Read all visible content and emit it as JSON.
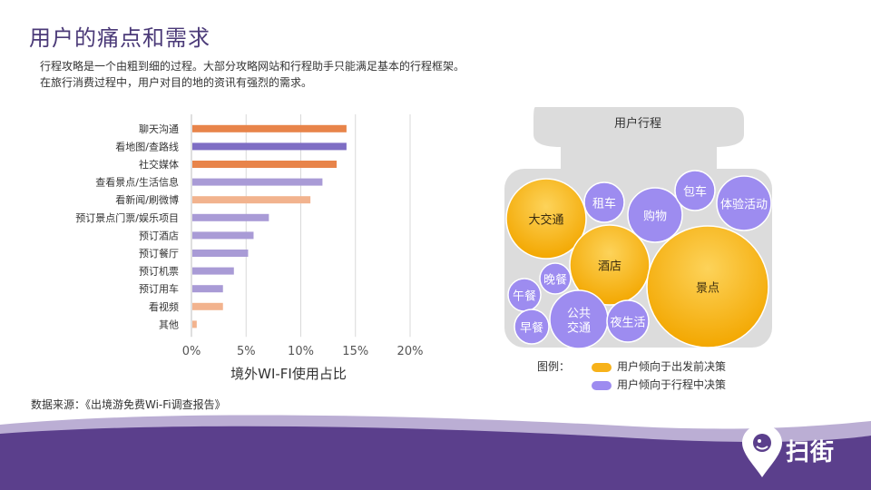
{
  "page": {
    "title": "用户的痛点和需求",
    "subtitle_lines": [
      "行程攻略是一个由粗到细的过程。大部分攻略网站和行程助手只能满足基本的行程框架。",
      "在旅行消费过程中，用户对目的地的资讯有强烈的需求。"
    ],
    "source": "数据来源：《出境游免费Wi-Fi调查报告》",
    "logo_text": "扫街"
  },
  "colors": {
    "title": "#4b3a78",
    "orange_dark": "#e8844a",
    "purple_dark": "#7e6ec4",
    "orange_light": "#f2b38e",
    "purple_light": "#a99bd6",
    "gold": "#f7b21a",
    "violet": "#9d8cf0",
    "footer_purple": "#5b3f8c"
  },
  "chart_data": {
    "type": "bar",
    "orientation": "horizontal",
    "categories": [
      "聊天沟通",
      "看地图/查路线",
      "社交媒体",
      "查看景点/生活信息",
      "看新闻/刷微博",
      "预订景点门票/娱乐项目",
      "预订酒店",
      "预订餐厅",
      "预订机票",
      "预订用车",
      "看视频",
      "其他"
    ],
    "values": [
      14.1,
      14.1,
      13.2,
      11.9,
      10.8,
      7.0,
      5.6,
      5.1,
      3.8,
      2.8,
      2.8,
      0.4
    ],
    "bar_colors": [
      "orange_dark",
      "purple_dark",
      "orange_dark",
      "purple_light",
      "orange_light",
      "purple_light",
      "purple_light",
      "purple_light",
      "purple_light",
      "purple_light",
      "orange_light",
      "orange_light"
    ],
    "x_ticks": [
      "0%",
      "5%",
      "10%",
      "15%",
      "20%"
    ],
    "xlim": [
      0,
      20
    ],
    "xlabel": "境外WI-FI使用占比",
    "grid": true
  },
  "bubble": {
    "header": "用户行程",
    "legend_title": "图例：",
    "legend": [
      {
        "label": "用户倾向于出发前决策",
        "color": "gold"
      },
      {
        "label": "用户倾向于行程中决策",
        "color": "violet"
      }
    ],
    "items": [
      {
        "label": "大交通",
        "kind": "gold"
      },
      {
        "label": "酒店",
        "kind": "gold"
      },
      {
        "label": "景点",
        "kind": "gold"
      },
      {
        "label": "租车",
        "kind": "violet"
      },
      {
        "label": "购物",
        "kind": "violet"
      },
      {
        "label": "包车",
        "kind": "violet"
      },
      {
        "label": "体验活动",
        "kind": "violet"
      },
      {
        "label": "晚餐",
        "kind": "violet"
      },
      {
        "label": "午餐",
        "kind": "violet"
      },
      {
        "label": "公共\n交通",
        "kind": "violet"
      },
      {
        "label": "早餐",
        "kind": "violet"
      },
      {
        "label": "夜生活",
        "kind": "violet"
      }
    ]
  }
}
